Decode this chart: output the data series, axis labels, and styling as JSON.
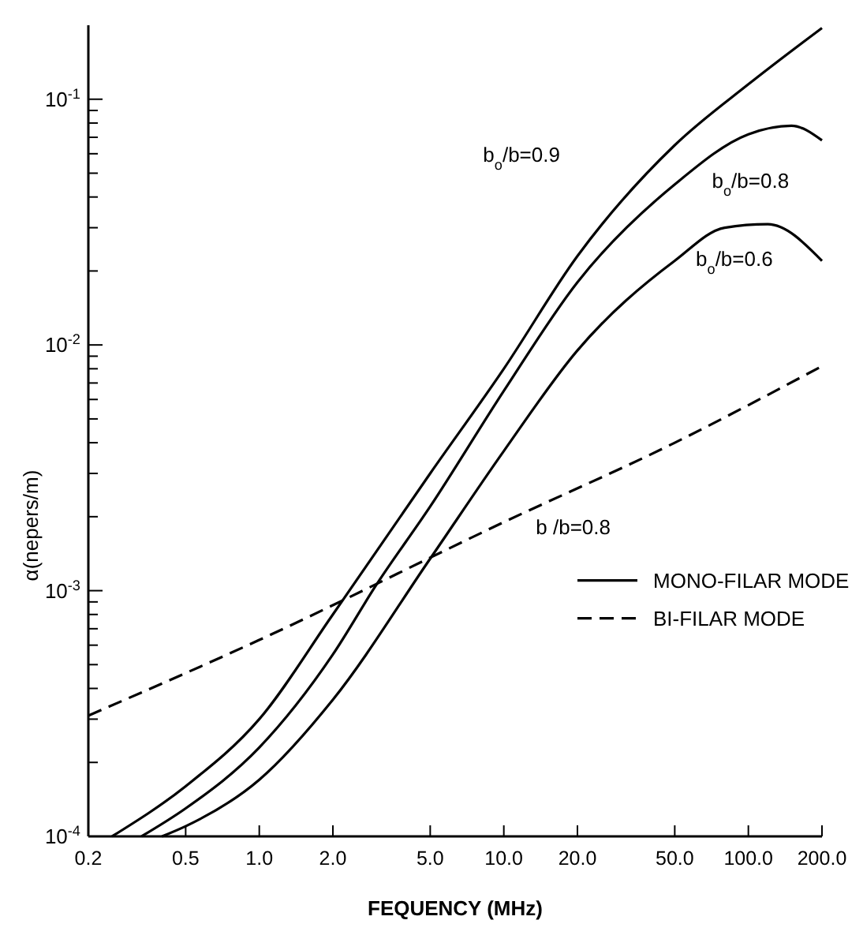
{
  "chart_data": {
    "type": "line",
    "xlabel": "FEQUENCY (MHz)",
    "ylabel": "α(nepers/m)",
    "log": "xy",
    "legend": "right",
    "xlim": [
      0.2,
      200
    ],
    "xticks": [
      0.2,
      0.5,
      {
        "value": 1,
        "label": "1.0"
      },
      {
        "value": 2,
        "label": "2.0"
      },
      {
        "value": 5,
        "label": "5.0"
      },
      {
        "value": 10,
        "label": "10.0"
      },
      {
        "value": 20,
        "label": "20.0"
      },
      {
        "value": 50,
        "label": "50.0"
      },
      {
        "value": 100,
        "label": "100.0"
      },
      {
        "value": 200,
        "label": "200.0"
      }
    ],
    "ylim": [
      0.0001,
      0.2
    ],
    "yticks": [
      {
        "value": 0.0001,
        "label": "10$^{-4}$"
      },
      {
        "value": 0.0002,
        "label": null
      },
      {
        "value": 0.0003,
        "label": null
      },
      {
        "value": 0.0004,
        "label": null
      },
      {
        "value": 0.0005,
        "label": null
      },
      {
        "value": 0.0006,
        "label": null
      },
      {
        "value": 0.0007,
        "label": null
      },
      {
        "value": 0.0008,
        "label": null
      },
      {
        "value": 0.0009,
        "label": null
      },
      {
        "value": 0.001,
        "label": "10$^{-3}$"
      },
      {
        "value": 0.002,
        "label": null
      },
      {
        "value": 0.003,
        "label": null
      },
      {
        "value": 0.004,
        "label": null
      },
      {
        "value": 0.005,
        "label": null
      },
      {
        "value": 0.006,
        "label": null
      },
      {
        "value": 0.007,
        "label": null
      },
      {
        "value": 0.008,
        "label": null
      },
      {
        "value": 0.009,
        "label": null
      },
      {
        "value": 0.01,
        "label": "10$^{-2}$"
      },
      {
        "value": 0.02,
        "label": null
      },
      {
        "value": 0.03,
        "label": null
      },
      {
        "value": 0.04,
        "label": null
      },
      {
        "value": 0.05,
        "label": null
      },
      {
        "value": 0.06,
        "label": null
      },
      {
        "value": 0.07,
        "label": null
      },
      {
        "value": 0.08,
        "label": null
      },
      {
        "value": 0.09,
        "label": null
      },
      {
        "value": 0.1,
        "label": "10$^{-1}$"
      }
    ],
    "series": [
      {
        "name": "MONO-FILAR MODE",
        "color": "#000000",
        "line_style": "solid",
        "x": [
          0.25,
          0.5,
          1,
          2,
          5,
          10,
          20,
          50,
          100,
          200
        ],
        "values": [
          0.0001,
          0.00016,
          0.0003,
          0.0008,
          0.003,
          0.008,
          0.023,
          0.065,
          0.115,
          0.195
        ]
      },
      {
        "color": "#000000",
        "line_style": "solid",
        "x": [
          0.33,
          0.5,
          1,
          2,
          3,
          5,
          10,
          20,
          50,
          100,
          150,
          200
        ],
        "values": [
          0.0001,
          0.00013,
          0.00023,
          0.00055,
          0.00105,
          0.0022,
          0.0065,
          0.018,
          0.045,
          0.072,
          0.078,
          0.068
        ]
      },
      {
        "color": "#000000",
        "line_style": "solid",
        "x": [
          0.4,
          0.5,
          1,
          2,
          5,
          10,
          20,
          50,
          80,
          120,
          200
        ],
        "values": [
          0.0001,
          0.00011,
          0.00017,
          0.00036,
          0.00135,
          0.0037,
          0.0095,
          0.022,
          0.03,
          0.031,
          0.022
        ]
      },
      {
        "name": "BI-FILAR MODE",
        "color": "#000000",
        "line_style": "dashed",
        "x": [
          0.2,
          1,
          10,
          50,
          200
        ],
        "values": [
          0.00031,
          0.00063,
          0.0019,
          0.004,
          0.0082
        ]
      }
    ],
    "annotations": [
      "b$_{o}$/b=0.9",
      "b$_{o}$/b=0.8",
      "b$_{o}$/b=0.6",
      "b /b=0.8"
    ]
  }
}
